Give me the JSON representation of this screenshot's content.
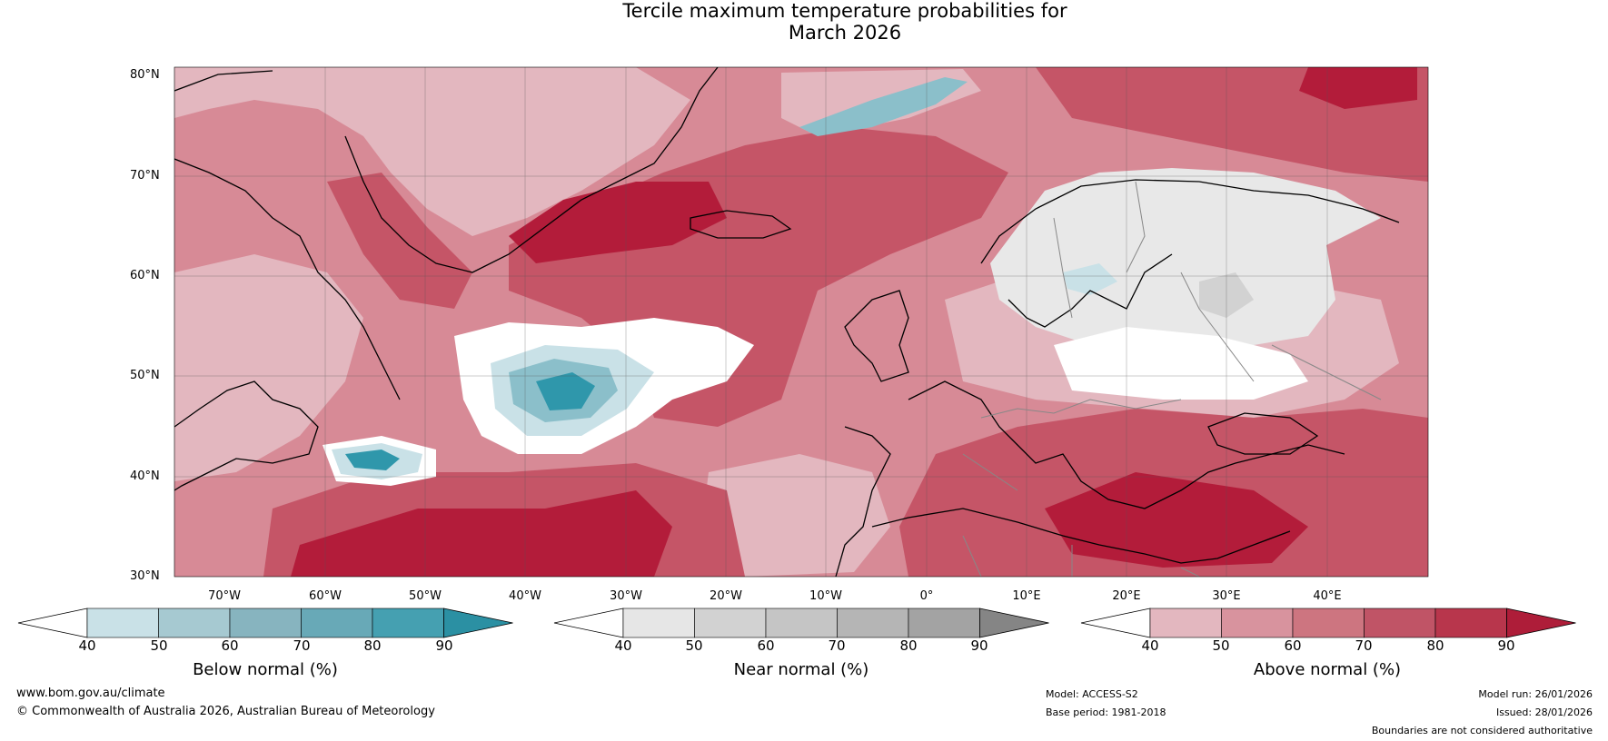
{
  "title": {
    "line1": "Tercile maximum temperature probabilities for",
    "line2": "March 2026"
  },
  "map": {
    "lat_labels": [
      "80°N",
      "70°N",
      "60°N",
      "50°N",
      "40°N",
      "30°N"
    ],
    "lon_labels": [
      "70°W",
      "60°W",
      "50°W",
      "40°W",
      "30°W",
      "20°W",
      "10°W",
      "0°",
      "10°E",
      "20°E",
      "30°E",
      "40°E"
    ],
    "colors": {
      "above_low": "#e3b7bf",
      "above_mid": "#d78a96",
      "above_high": "#c55567",
      "above_max": "#b31c3a",
      "below_low": "#c9e1e7",
      "below_mid": "#8bbfca",
      "below_high": "#2f97ab",
      "near_low": "#e8e8e8",
      "near_mid": "#d2d2d2",
      "land_outline": "#000000",
      "border": "#888888"
    }
  },
  "colorbars": {
    "ticks": [
      "40",
      "50",
      "60",
      "70",
      "80",
      "90"
    ],
    "below": {
      "label": "Below normal (%)",
      "colors": [
        "#ffffff",
        "#c9e1e7",
        "#a6c9d1",
        "#87b4bf",
        "#68a9b7",
        "#45a0b1",
        "#2b90a3"
      ]
    },
    "near": {
      "label": "Near normal (%)",
      "colors": [
        "#ffffff",
        "#e6e6e6",
        "#d2d2d2",
        "#c5c5c5",
        "#b5b5b5",
        "#a3a3a3",
        "#858585"
      ]
    },
    "above": {
      "label": "Above normal (%)",
      "colors": [
        "#ffffff",
        "#e3b7bf",
        "#d8939e",
        "#cd7580",
        "#c05466",
        "#b8364c",
        "#ae1d39"
      ]
    }
  },
  "footer": {
    "url": "www.bom.gov.au/climate",
    "copyright": "© Commonwealth of Australia 2026, Australian Bureau of Meteorology",
    "model": "Model: ACCESS-S2",
    "base_period": "Base period: 1981-2018",
    "model_run": "Model run: 26/01/2026",
    "issued": "Issued: 28/01/2026",
    "disclaimer": "Boundaries are not considered authoritative"
  }
}
